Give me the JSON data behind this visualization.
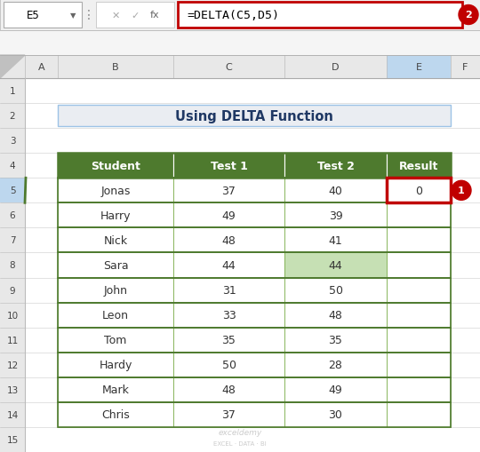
{
  "title": "Using DELTA Function",
  "formula_bar_text": "=DELTA(C5,D5)",
  "cell_ref": "E5",
  "header_bg": "#4E7A2E",
  "header_text_color": "#FFFFFF",
  "title_text_color": "#1F3864",
  "title_bg": "#EAEDF2",
  "title_border_color": "#9DC3E6",
  "row_bg_white": "#FFFFFF",
  "grid_color": "#5A8A30",
  "cell_border_color": "#7FB050",
  "outer_border_color": "#4E7A2E",
  "highlight_cell_border": "#C00000",
  "formula_bar_border": "#C00000",
  "badge_color": "#C00000",
  "badge_text_color": "#FFFFFF",
  "col_headers": [
    "Student",
    "Test 1",
    "Test 2",
    "Result"
  ],
  "rows": [
    [
      "Jonas",
      "37",
      "40",
      "0"
    ],
    [
      "Harry",
      "49",
      "39",
      ""
    ],
    [
      "Nick",
      "48",
      "41",
      ""
    ],
    [
      "Sara",
      "44",
      "44",
      ""
    ],
    [
      "John",
      "31",
      "50",
      ""
    ],
    [
      "Leon",
      "33",
      "48",
      ""
    ],
    [
      "Tom",
      "35",
      "35",
      ""
    ],
    [
      "Hardy",
      "50",
      "28",
      ""
    ],
    [
      "Mark",
      "48",
      "49",
      ""
    ],
    [
      "Chris",
      "37",
      "30",
      ""
    ]
  ],
  "sara_test2_highlight": "#C6E0B4",
  "bg_color": "#D6D6D6",
  "sheet_bg": "#FFFFFF",
  "row_num_bg": "#E8E8E8",
  "col_hdr_bg": "#E8E8E8",
  "selected_col_bg": "#BDD7EE",
  "selected_row_bg": "#BDD7EE",
  "excel_cols": [
    "A",
    "B",
    "C",
    "D",
    "E",
    "F"
  ],
  "row_labels": [
    "1",
    "2",
    "3",
    "4",
    "5",
    "6",
    "7",
    "8",
    "9",
    "10",
    "11",
    "12",
    "13",
    "14",
    "15"
  ]
}
